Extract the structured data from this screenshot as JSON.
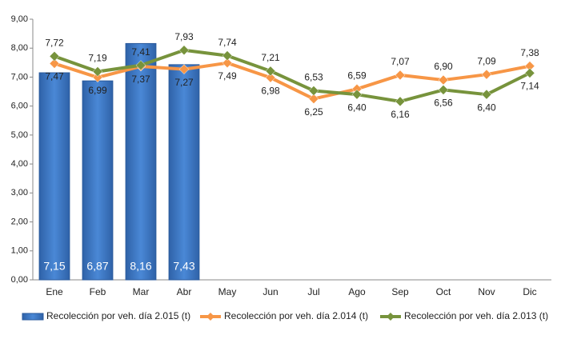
{
  "chart_data": {
    "type": "bar+line",
    "categories": [
      "Ene",
      "Feb",
      "Mar",
      "Abr",
      "May",
      "Jun",
      "Jul",
      "Ago",
      "Sep",
      "Oct",
      "Nov",
      "Dic"
    ],
    "ylim": [
      0,
      9
    ],
    "yticks": [
      {
        "value": 0,
        "label": "0,00"
      },
      {
        "value": 1,
        "label": "1,00"
      },
      {
        "value": 2,
        "label": "2,00"
      },
      {
        "value": 3,
        "label": "3,00"
      },
      {
        "value": 4,
        "label": "4,00"
      },
      {
        "value": 5,
        "label": "5,00"
      },
      {
        "value": 6,
        "label": "6,00"
      },
      {
        "value": 7,
        "label": "7,00"
      },
      {
        "value": 8,
        "label": "8,00"
      },
      {
        "value": 9,
        "label": "9,00"
      }
    ],
    "grid": false,
    "legend": "bottom",
    "series": [
      {
        "name": "Recolección por veh. día 2.015 (t)",
        "type": "bar",
        "color": "#3b76c6",
        "values": [
          7.15,
          6.87,
          8.16,
          7.43,
          null,
          null,
          null,
          null,
          null,
          null,
          null,
          null
        ],
        "value_labels": [
          "7,15",
          "6,87",
          "8,16",
          "7,43",
          null,
          null,
          null,
          null,
          null,
          null,
          null,
          null
        ]
      },
      {
        "name": "Recolección por veh. día 2.014 (t)",
        "type": "line",
        "color": "#f79646",
        "values": [
          7.47,
          6.99,
          7.37,
          7.27,
          7.49,
          6.98,
          6.25,
          6.59,
          7.07,
          6.9,
          7.09,
          7.38
        ],
        "value_labels": [
          "7,47",
          "6,99",
          "7,37",
          "7,27",
          "7,49",
          "6,98",
          "6,25",
          "6,59",
          "7,07",
          "6,90",
          "7,09",
          "7,38"
        ]
      },
      {
        "name": "Recolección por veh. día 2.013 (t)",
        "type": "line",
        "color": "#77933c",
        "values": [
          7.72,
          7.19,
          7.41,
          7.93,
          7.74,
          7.21,
          6.53,
          6.4,
          6.16,
          6.56,
          6.4,
          7.14
        ],
        "value_labels": [
          "7,72",
          "7,19",
          "7,41",
          "7,93",
          "7,74",
          "7,21",
          "6,53",
          "6,40",
          "6,16",
          "6,56",
          "6,40",
          "7,14"
        ]
      }
    ]
  }
}
